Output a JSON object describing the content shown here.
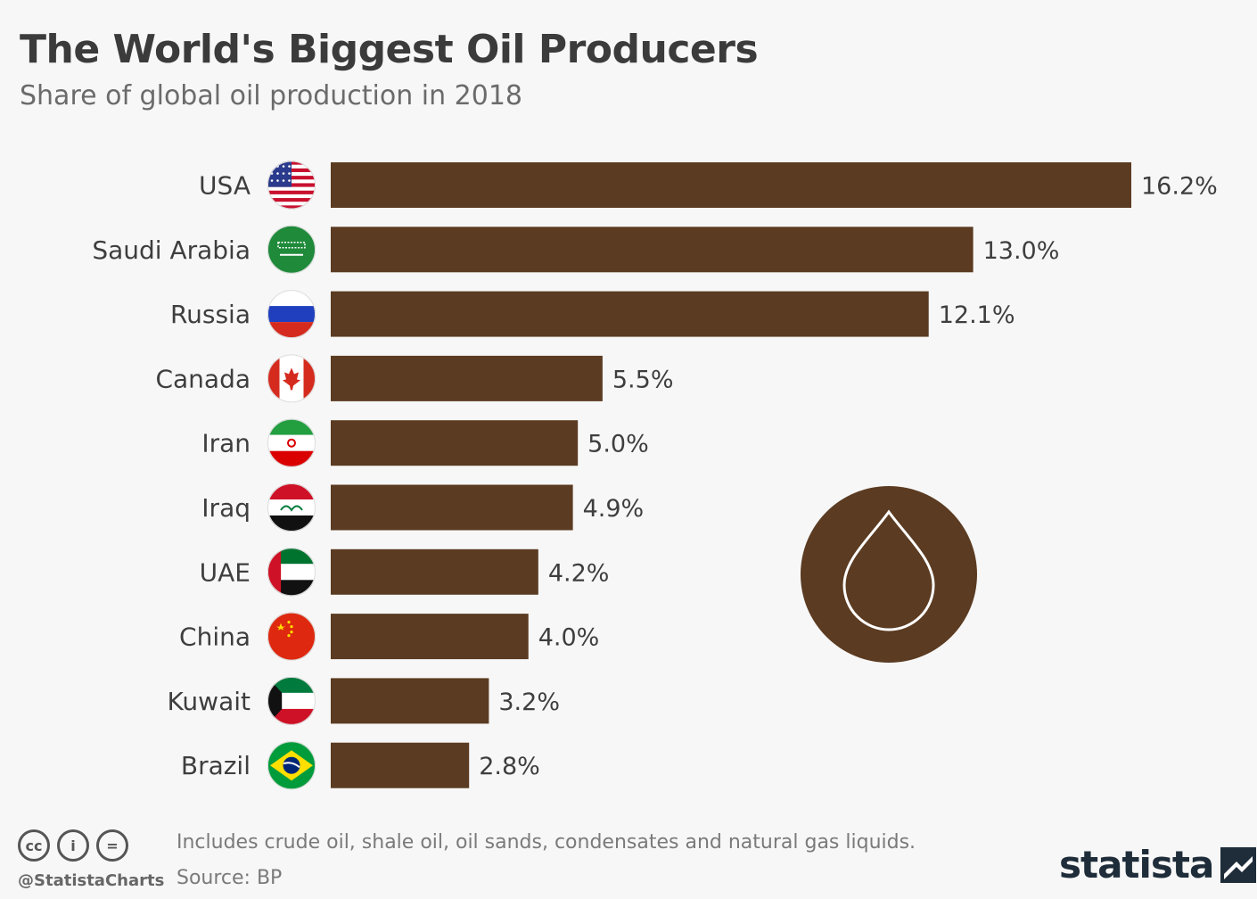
{
  "header": {
    "title": "The World's Biggest Oil Producers",
    "subtitle": "Share of global oil production in 2018"
  },
  "footer": {
    "note": "Includes crude oil, shale oil, oil sands, condensates and natural gas liquids.",
    "source": "Source: BP",
    "handle": "@StatistaCharts",
    "brand": "statista",
    "license_icons": [
      "cc-icon",
      "by-icon",
      "nd-icon"
    ],
    "license_labels": [
      "cc",
      "i",
      "="
    ]
  },
  "colors": {
    "bar": "#5b3b21",
    "label": "#3e3e3e",
    "background": "#f7f7f7"
  },
  "decor": {
    "icon": "oil-drop-icon"
  },
  "chart_data": {
    "type": "bar",
    "orientation": "horizontal",
    "title": "The World's Biggest Oil Producers",
    "subtitle": "Share of global oil production in 2018",
    "xlabel": "",
    "ylabel": "",
    "unit": "%",
    "xlim": [
      0,
      16.2
    ],
    "grid": false,
    "categories": [
      "USA",
      "Saudi Arabia",
      "Russia",
      "Canada",
      "Iran",
      "Iraq",
      "UAE",
      "China",
      "Kuwait",
      "Brazil"
    ],
    "values": [
      16.2,
      13.0,
      12.1,
      5.5,
      5.0,
      4.9,
      4.2,
      4.0,
      3.2,
      2.8
    ],
    "value_labels": [
      "16.2%",
      "13.0%",
      "12.1%",
      "5.5%",
      "5.0%",
      "4.9%",
      "4.2%",
      "4.0%",
      "3.2%",
      "2.8%"
    ],
    "flag_icons": [
      "usa-flag-icon",
      "saudi-arabia-flag-icon",
      "russia-flag-icon",
      "canada-flag-icon",
      "iran-flag-icon",
      "iraq-flag-icon",
      "uae-flag-icon",
      "china-flag-icon",
      "kuwait-flag-icon",
      "brazil-flag-icon"
    ]
  }
}
